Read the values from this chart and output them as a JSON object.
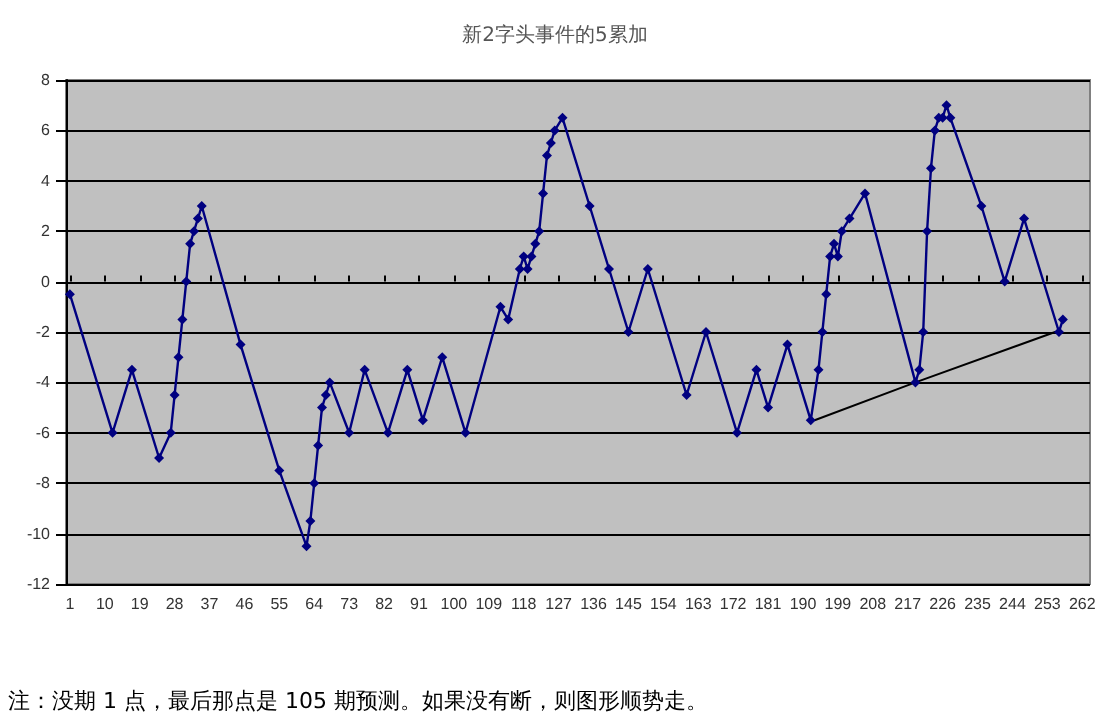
{
  "chart_data": {
    "type": "line",
    "title": "新2字头事件的5累加",
    "x": [
      1,
      12,
      17,
      24,
      27,
      28,
      29,
      30,
      31,
      32,
      33,
      34,
      35,
      45,
      55,
      62,
      63,
      64,
      65,
      66,
      67,
      68,
      73,
      77,
      83,
      88,
      92,
      97,
      103,
      112,
      114,
      117,
      118,
      119,
      120,
      121,
      122,
      123,
      124,
      125,
      126,
      128,
      135,
      140,
      145,
      150,
      160,
      165,
      173,
      178,
      181,
      186,
      192,
      194,
      195,
      196,
      197,
      198,
      199,
      200,
      202,
      206,
      219,
      220,
      221,
      222,
      223,
      224,
      225,
      226,
      227,
      228,
      236,
      242,
      247,
      256,
      257
    ],
    "series": [
      {
        "color": "#000080",
        "values": [
          -0.5,
          -6,
          -3.5,
          -7,
          -6,
          -4.5,
          -3,
          -1.5,
          0,
          1.5,
          2,
          2.5,
          3,
          -2.5,
          -7.5,
          -10.5,
          -9.5,
          -8,
          -6.5,
          -5,
          -4.5,
          -4,
          -6,
          -3.5,
          -6,
          -3.5,
          -5.5,
          -3,
          -6,
          -1,
          -1.5,
          0.5,
          1,
          0.5,
          1,
          1.5,
          2,
          3.5,
          5,
          5.5,
          6,
          6.5,
          3,
          0.5,
          -2,
          0.5,
          -4.5,
          -2,
          -6,
          -3.5,
          -5,
          -2.5,
          -5.5,
          -3.5,
          -2,
          -0.5,
          1,
          1.5,
          1,
          2,
          2.5,
          3.5,
          -4,
          -3.5,
          -2,
          2,
          4.5,
          6,
          6.5,
          6.5,
          7,
          6.5,
          3,
          0,
          2.5,
          -2,
          -1.5
        ]
      },
      {
        "type": "line",
        "color": "#000000",
        "marker": "none",
        "x": [
          193,
          219,
          255
        ],
        "values": [
          -5.5,
          -4,
          -2
        ]
      }
    ],
    "xlim": [
      0,
      264
    ],
    "xticks": [
      1,
      10,
      19,
      28,
      37,
      46,
      55,
      64,
      73,
      82,
      91,
      100,
      109,
      118,
      127,
      136,
      145,
      154,
      163,
      172,
      181,
      190,
      199,
      208,
      217,
      226,
      235,
      244,
      253,
      262
    ],
    "ylim": [
      -12,
      8
    ],
    "yticks": [
      -12,
      -10,
      -8,
      -6,
      -4,
      -2,
      0,
      2,
      4,
      6,
      8
    ],
    "grid": "y",
    "marker": "diamond",
    "line_style": "solid",
    "annotations": [
      "注：没期 1 点，最后那点是 105 期预测。如果没有断，则图形顺势走。"
    ]
  }
}
